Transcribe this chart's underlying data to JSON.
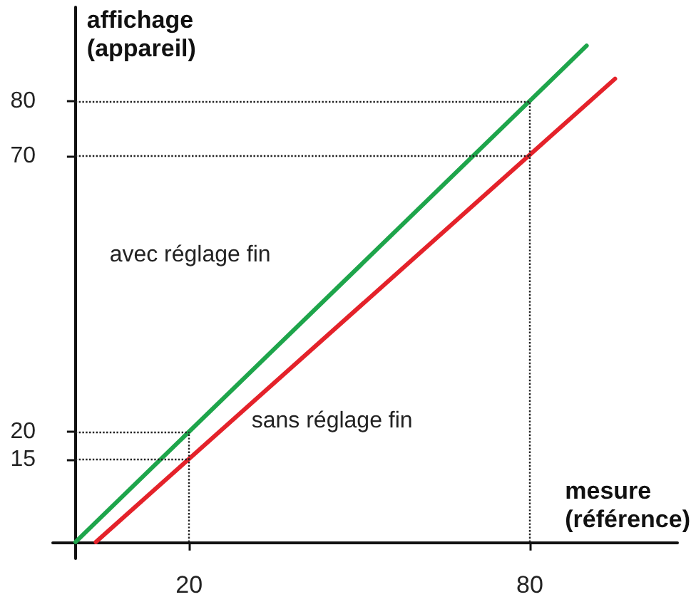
{
  "chart_data": {
    "type": "line",
    "xlabel": "mesure\n(référence)",
    "ylabel": "affichage\n(appareil)",
    "xlim": [
      -4,
      106
    ],
    "ylim": [
      -3,
      97
    ],
    "xticks": [
      20,
      80
    ],
    "yticks": [
      15,
      20,
      70,
      80
    ],
    "series": [
      {
        "name": "avec réglage fin",
        "color": "#1ea54b",
        "x": [
          0,
          90
        ],
        "values": [
          0,
          90
        ]
      },
      {
        "name": "sans réglage fin",
        "color": "#e4222a",
        "x": [
          3.6,
          95
        ],
        "values": [
          0,
          84
        ]
      }
    ],
    "ref_lines": [
      {
        "axis": "y",
        "value": 80,
        "line_style": "dotted",
        "color": "#222222"
      },
      {
        "axis": "y",
        "value": 70,
        "line_style": "dotted",
        "color": "#222222"
      },
      {
        "axis": "y",
        "value": 20,
        "line_style": "dotted",
        "color": "#222222"
      },
      {
        "axis": "y",
        "value": 15,
        "line_style": "dotted",
        "color": "#222222"
      },
      {
        "axis": "x",
        "value": 20,
        "line_style": "dotted",
        "color": "#222222"
      },
      {
        "axis": "x",
        "value": 80,
        "line_style": "dotted",
        "color": "#222222"
      }
    ],
    "grid": false,
    "legend": false,
    "marker": "none",
    "line_style": "solid"
  }
}
